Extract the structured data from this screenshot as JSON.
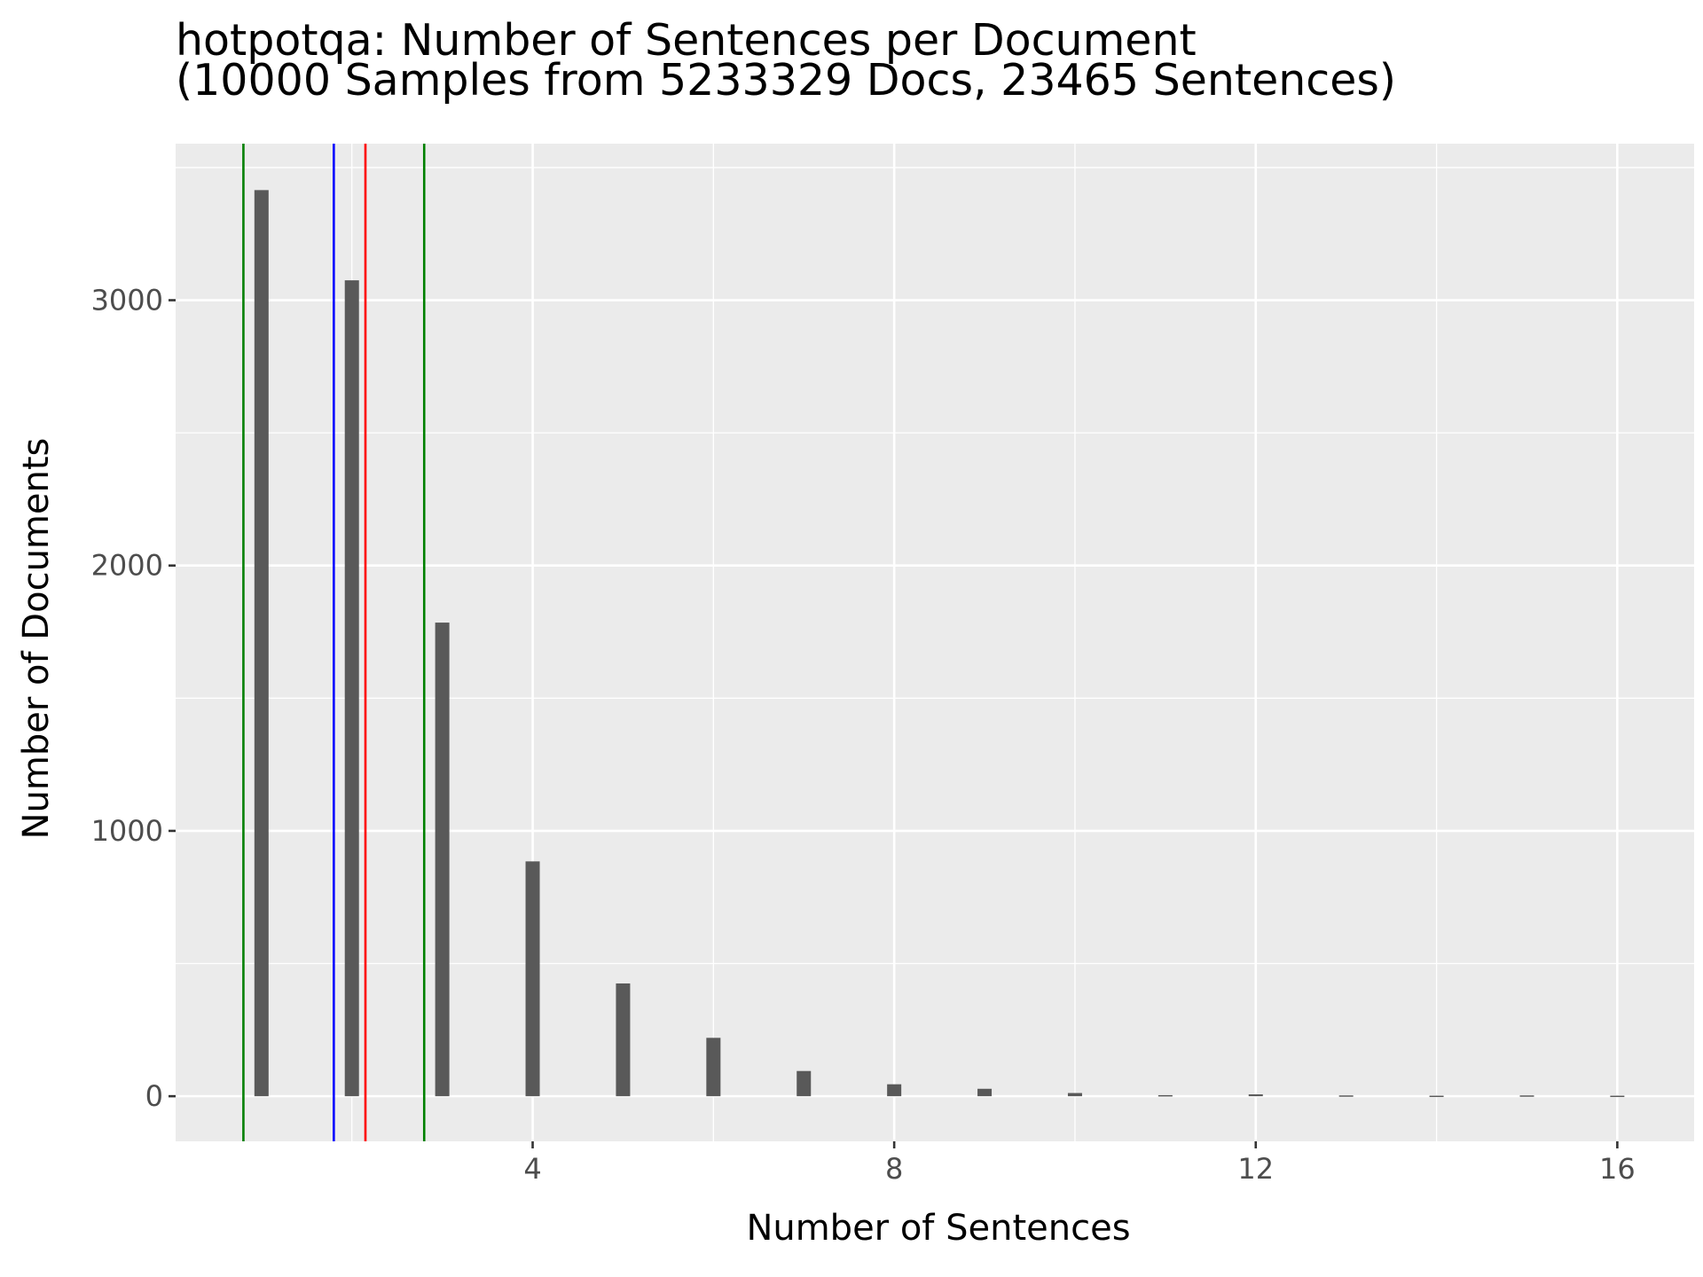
{
  "chart_data": {
    "type": "bar",
    "title": "hotpotqa: Number of Sentences per Document",
    "subtitle": "(10000 Samples from 5233329 Docs, 23465 Sentences)",
    "xlabel": "Number of Sentences",
    "ylabel": "Number of Documents",
    "x_ticks": [
      4,
      8,
      12,
      16
    ],
    "y_ticks": [
      0,
      1000,
      2000,
      3000
    ],
    "xlim": [
      0.05,
      16.85
    ],
    "ylim": [
      -170,
      3590
    ],
    "grid": true,
    "bar_color": "#595959",
    "panel_color": "#ebebeb",
    "grid_color": "#ffffff",
    "bars": [
      {
        "x": 1,
        "y": 3415
      },
      {
        "x": 2,
        "y": 3075
      },
      {
        "x": 3,
        "y": 1785
      },
      {
        "x": 4,
        "y": 885
      },
      {
        "x": 5,
        "y": 425
      },
      {
        "x": 6,
        "y": 220
      },
      {
        "x": 7,
        "y": 95
      },
      {
        "x": 8,
        "y": 45
      },
      {
        "x": 9,
        "y": 28
      },
      {
        "x": 10,
        "y": 12
      },
      {
        "x": 11,
        "y": 4
      },
      {
        "x": 12,
        "y": 7
      },
      {
        "x": 13,
        "y": 3
      },
      {
        "x": 14,
        "y": 2
      },
      {
        "x": 15,
        "y": 3
      },
      {
        "x": 16,
        "y": 2
      }
    ],
    "vlines": [
      {
        "x": 0.8,
        "color": "#008000"
      },
      {
        "x": 1.8,
        "color": "#0000ff"
      },
      {
        "x": 2.15,
        "color": "#ff0000"
      },
      {
        "x": 2.8,
        "color": "#008000"
      }
    ]
  }
}
